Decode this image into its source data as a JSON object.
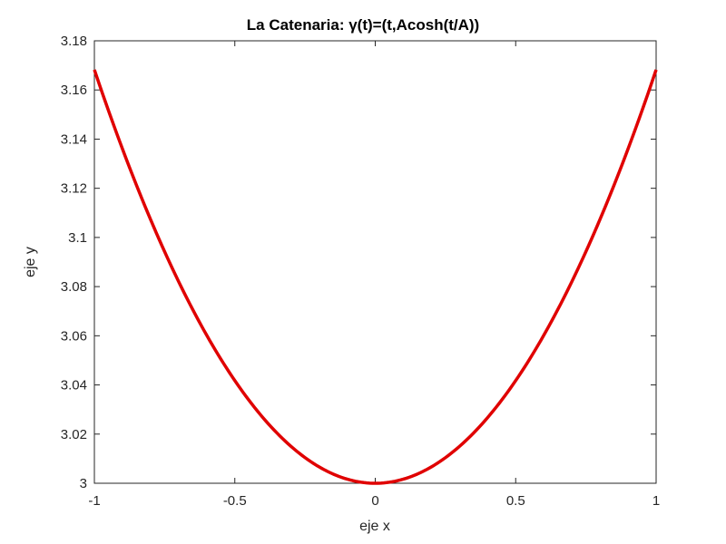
{
  "chart_data": {
    "type": "line",
    "title": "La Catenaria: γ(t)=(t,Acosh(t/A))",
    "xlabel": "eje x",
    "ylabel": "eje y",
    "xlim": [
      -1,
      1
    ],
    "ylim": [
      3,
      3.18
    ],
    "xticks": [
      "-1",
      "-0.5",
      "0",
      "0.5",
      "1"
    ],
    "yticks": [
      "3",
      "3.02",
      "3.04",
      "3.06",
      "3.08",
      "3.1",
      "3.12",
      "3.14",
      "3.16",
      "3.18"
    ],
    "grid": false,
    "series": [
      {
        "name": "catenaria",
        "color": "#e00000",
        "formula": "y = 3*cosh(x/3)",
        "x": [
          -1,
          -0.75,
          -0.5,
          -0.25,
          0,
          0.25,
          0.5,
          0.75,
          1
        ],
        "y": [
          3.168,
          3.0941,
          3.0417,
          3.0104,
          3.0,
          3.0104,
          3.0417,
          3.0941,
          3.168
        ]
      }
    ]
  }
}
